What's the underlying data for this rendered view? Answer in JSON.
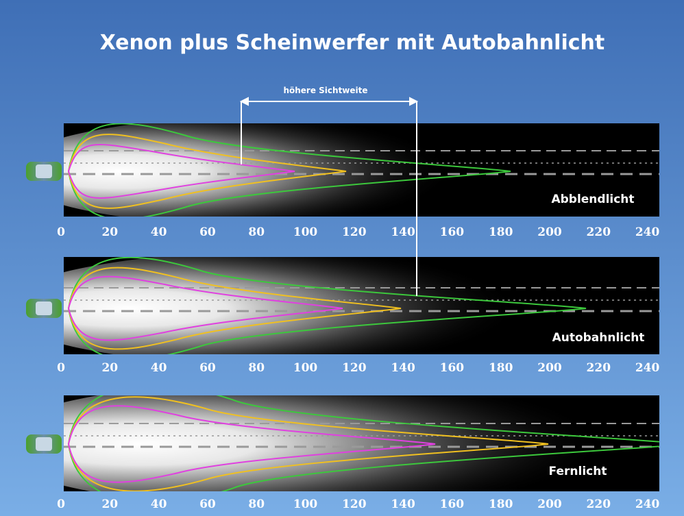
{
  "title": "Xenon plus Scheinwerfer mit Autobahnlicht",
  "annotation": "höhere Sichtweite",
  "panels": [
    {
      "label": "Abblendlicht",
      "ticks": [
        "0",
        "20",
        "40",
        "60",
        "80",
        "100",
        "120",
        "140",
        "160",
        "180",
        "200",
        "220",
        "240"
      ]
    },
    {
      "label": "Autobahnlicht",
      "ticks": [
        "0",
        "20",
        "40",
        "60",
        "80",
        "100",
        "120",
        "140",
        "160",
        "180",
        "200",
        "220",
        "240"
      ]
    },
    {
      "label": "Fernlicht",
      "ticks": [
        "0",
        "20",
        "40",
        "60",
        "80",
        "100",
        "120",
        "140",
        "160",
        "180",
        "200",
        "220",
        "240"
      ]
    }
  ]
}
